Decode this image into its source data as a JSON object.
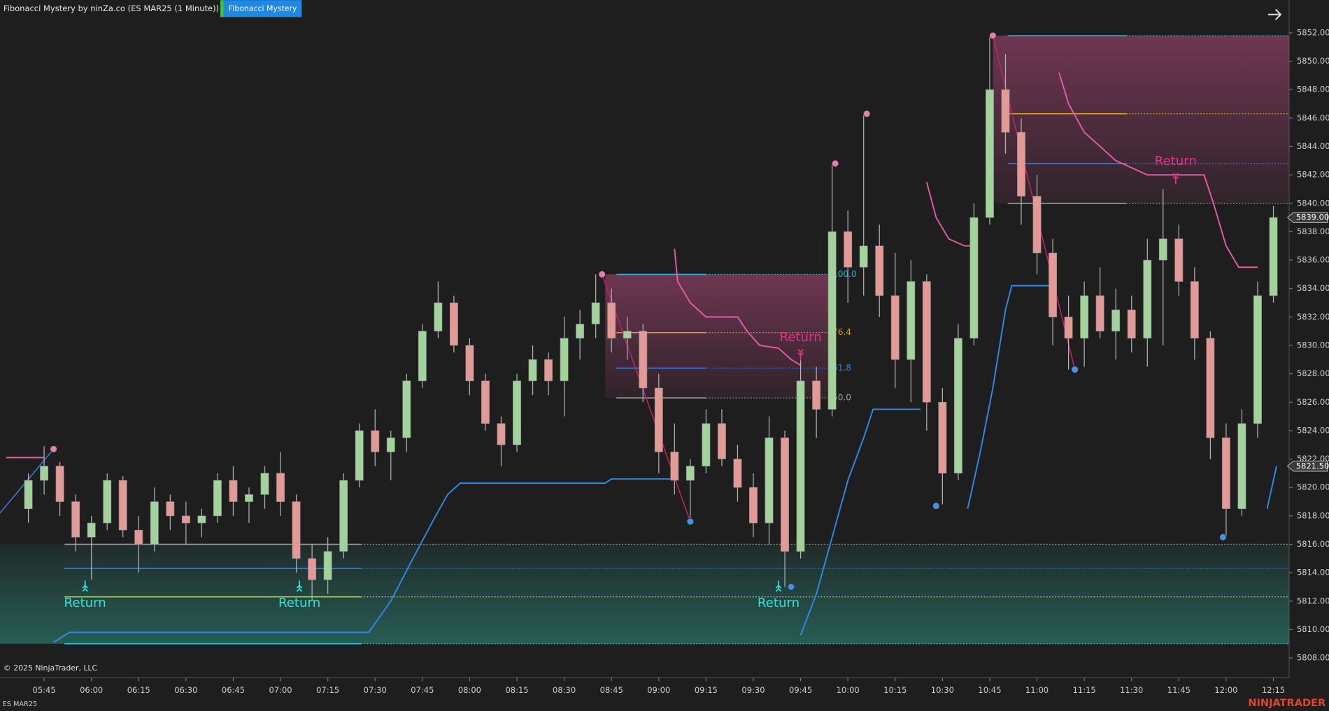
{
  "header": {
    "title": "Fibonacci Mystery by ninZa.co (ES MAR25 (1 Minute))",
    "button": "Fibonacci Mystery"
  },
  "chart_data": {
    "type": "candlestick",
    "x": [
      "05:40",
      "05:45",
      "05:50",
      "05:55",
      "06:00",
      "06:05",
      "06:10",
      "06:15",
      "06:20",
      "06:25",
      "06:30",
      "06:35",
      "06:40",
      "06:45",
      "06:50",
      "06:55",
      "07:00",
      "07:05",
      "07:10",
      "07:15",
      "07:20",
      "07:25",
      "07:30",
      "07:35",
      "07:40",
      "07:45",
      "07:50",
      "07:55",
      "08:00",
      "08:05",
      "08:10",
      "08:15",
      "08:20",
      "08:25",
      "08:30",
      "08:35",
      "08:40",
      "08:45",
      "08:50",
      "08:55",
      "09:00",
      "09:05",
      "09:10",
      "09:15",
      "09:20",
      "09:25",
      "09:30",
      "09:35",
      "09:40",
      "09:45",
      "09:50",
      "09:55",
      "10:00",
      "10:05",
      "10:10",
      "10:15",
      "10:20",
      "10:25",
      "10:30",
      "10:35",
      "10:40",
      "10:45",
      "10:50",
      "10:55",
      "11:00",
      "11:05",
      "11:10",
      "11:15",
      "11:20",
      "11:25",
      "11:30",
      "11:35",
      "11:40",
      "11:45",
      "11:50",
      "11:55",
      "12:00",
      "12:05",
      "12:10",
      "12:15"
    ],
    "open": [
      5818.5,
      5820.5,
      5821.5,
      5819.0,
      5816.5,
      5817.5,
      5820.5,
      5817.0,
      5816.0,
      5819.0,
      5818.0,
      5817.5,
      5818.0,
      5820.5,
      5819.0,
      5819.5,
      5821.0,
      5819.0,
      5815.0,
      5813.5,
      5815.5,
      5820.5,
      5824.0,
      5822.5,
      5823.5,
      5827.5,
      5831.0,
      5833.0,
      5830.0,
      5827.5,
      5824.5,
      5823.0,
      5827.5,
      5829.0,
      5827.5,
      5830.5,
      5831.5,
      5833.0,
      5830.5,
      5831.0,
      5827.0,
      5822.5,
      5820.5,
      5821.5,
      5824.5,
      5822.0,
      5820.0,
      5817.5,
      5823.5,
      5815.5,
      5827.5,
      5825.5,
      5838.0,
      5835.5,
      5837.0,
      5833.5,
      5829.0,
      5834.5,
      5826.0,
      5821.0,
      5830.5,
      5839.0,
      5848.0,
      5845.0,
      5840.5,
      5836.5,
      5832.0,
      5830.5,
      5833.5,
      5831.0,
      5832.5,
      5830.5,
      5836.0,
      5837.5,
      5834.5,
      5830.5,
      5823.5,
      5818.5,
      5824.5,
      5833.5
    ],
    "high": [
      5821.0,
      5822.9,
      5821.8,
      5819.5,
      5818.0,
      5821.0,
      5820.8,
      5818.0,
      5820.0,
      5819.5,
      5819.0,
      5818.5,
      5821.0,
      5821.5,
      5820.0,
      5821.5,
      5822.5,
      5819.5,
      5816.0,
      5816.5,
      5821.0,
      5824.5,
      5825.5,
      5824.0,
      5828.0,
      5831.5,
      5834.5,
      5833.5,
      5830.5,
      5828.0,
      5825.0,
      5828.0,
      5830.0,
      5829.5,
      5832.0,
      5832.5,
      5835.0,
      5834.0,
      5832.0,
      5831.5,
      5828.0,
      5824.5,
      5822.0,
      5825.5,
      5825.5,
      5823.0,
      5821.0,
      5825.0,
      5824.0,
      5829.0,
      5828.5,
      5842.7,
      5839.5,
      5846.3,
      5838.5,
      5836.5,
      5836.0,
      5835.0,
      5827.0,
      5831.5,
      5840.0,
      5851.8,
      5850.5,
      5846.0,
      5842.0,
      5837.5,
      5833.5,
      5834.5,
      5835.5,
      5834.0,
      5833.5,
      5837.5,
      5841.0,
      5838.5,
      5835.5,
      5831.0,
      5824.5,
      5825.5,
      5834.5,
      5839.8
    ],
    "low": [
      5817.5,
      5819.5,
      5818.0,
      5815.5,
      5813.5,
      5817.0,
      5816.5,
      5814.0,
      5815.5,
      5817.0,
      5816.0,
      5816.5,
      5817.5,
      5818.0,
      5817.5,
      5818.5,
      5818.0,
      5814.0,
      5812.0,
      5812.5,
      5815.0,
      5820.0,
      5821.5,
      5820.5,
      5822.5,
      5827.0,
      5830.5,
      5829.5,
      5826.5,
      5824.0,
      5821.5,
      5822.5,
      5826.5,
      5826.5,
      5825.0,
      5829.0,
      5830.5,
      5829.5,
      5829.0,
      5826.0,
      5821.0,
      5819.5,
      5817.6,
      5821.0,
      5821.5,
      5819.0,
      5816.5,
      5816.0,
      5813.0,
      5815.0,
      5823.5,
      5825.0,
      5833.0,
      5833.5,
      5832.0,
      5827.0,
      5826.0,
      5824.0,
      5818.8,
      5820.5,
      5830.0,
      5838.5,
      5843.5,
      5838.5,
      5835.0,
      5830.0,
      5828.3,
      5828.5,
      5830.5,
      5829.0,
      5829.5,
      5828.5,
      5830.0,
      5833.5,
      5829.0,
      5822.0,
      5816.5,
      5818.0,
      5823.5,
      5833.0
    ],
    "close": [
      5820.5,
      5821.5,
      5819.0,
      5816.5,
      5817.5,
      5820.5,
      5817.0,
      5816.0,
      5819.0,
      5818.0,
      5817.5,
      5818.0,
      5820.5,
      5819.0,
      5819.5,
      5821.0,
      5819.0,
      5815.0,
      5813.5,
      5815.5,
      5820.5,
      5824.0,
      5822.5,
      5823.5,
      5827.5,
      5831.0,
      5833.0,
      5830.0,
      5827.5,
      5824.5,
      5823.0,
      5827.5,
      5829.0,
      5827.5,
      5830.5,
      5831.5,
      5833.0,
      5830.5,
      5831.0,
      5827.0,
      5822.5,
      5820.5,
      5821.5,
      5824.5,
      5822.0,
      5820.0,
      5817.5,
      5823.5,
      5815.5,
      5827.5,
      5825.5,
      5838.0,
      5835.5,
      5837.0,
      5833.5,
      5829.0,
      5834.5,
      5826.0,
      5821.0,
      5830.5,
      5839.0,
      5848.0,
      5845.0,
      5840.5,
      5836.5,
      5832.0,
      5830.5,
      5833.5,
      5831.0,
      5832.5,
      5830.5,
      5836.0,
      5837.5,
      5834.5,
      5830.5,
      5823.5,
      5818.5,
      5824.5,
      5833.5,
      5839.0
    ],
    "up_color": "#a3d39c",
    "down_color": "#e39a97",
    "xlim": [
      "05:31",
      "12:20"
    ],
    "xticks": [
      "05:45",
      "06:00",
      "06:15",
      "06:30",
      "06:45",
      "07:00",
      "07:15",
      "07:30",
      "07:45",
      "08:00",
      "08:15",
      "08:30",
      "08:45",
      "09:00",
      "09:15",
      "09:30",
      "09:45",
      "10:00",
      "10:15",
      "10:30",
      "10:45",
      "11:00",
      "11:15",
      "11:30",
      "11:45",
      "12:00",
      "12:15"
    ],
    "ylim": [
      5806.6,
      5854.3
    ],
    "yticks": [
      {
        "value": 5808,
        "label": "5808.00"
      },
      {
        "value": 5810,
        "label": "5810.00"
      },
      {
        "value": 5812,
        "label": "5812.00"
      },
      {
        "value": 5814,
        "label": "5814.00"
      },
      {
        "value": 5816,
        "label": "5816.00"
      },
      {
        "value": 5818,
        "label": "5818.00"
      },
      {
        "value": 5820,
        "label": "5820.00"
      },
      {
        "value": 5822,
        "label": "5822.00"
      },
      {
        "value": 5824,
        "label": "5824.00"
      },
      {
        "value": 5826,
        "label": "5826.00"
      },
      {
        "value": 5828,
        "label": "5828.00"
      },
      {
        "value": 5830,
        "label": "5830.00"
      },
      {
        "value": 5832,
        "label": "5832.00"
      },
      {
        "value": 5834,
        "label": "5834.00"
      },
      {
        "value": 5836,
        "label": "5836.00"
      },
      {
        "value": 5838,
        "label": "5838.00"
      },
      {
        "value": 5840,
        "label": "5840.00"
      },
      {
        "value": 5842,
        "label": "5842.00"
      },
      {
        "value": 5844,
        "label": "5844.00"
      },
      {
        "value": 5846,
        "label": "5846.00"
      },
      {
        "value": 5848,
        "label": "5848.00"
      },
      {
        "value": 5850,
        "label": "5850.00"
      },
      {
        "value": 5852,
        "label": "5852.00"
      }
    ],
    "zones": [
      {
        "x": [
          "05:31",
          "12:20"
        ],
        "direction": "up",
        "fill": "#2f8f80",
        "levels": [
          {
            "price": 5816.0,
            "color": "#9e9e9e"
          },
          {
            "price": 5814.3,
            "color": "#2f80ed"
          },
          {
            "price": 5812.3,
            "color": "#d6c530"
          },
          {
            "price": 5809.0,
            "color": "#26c6da"
          }
        ]
      },
      {
        "x": [
          "08:43",
          "09:54"
        ],
        "direction": "down",
        "fill": "#b04a7c",
        "levels": [
          {
            "price": 5835.0,
            "ratio": "100.0",
            "color": "#26b5d6"
          },
          {
            "price": 5830.9,
            "ratio": "76.4",
            "color": "#e0a020"
          },
          {
            "price": 5828.4,
            "ratio": "61.8",
            "color": "#2f80ed"
          },
          {
            "price": 5826.3,
            "ratio": "50.0",
            "color": "#9e9e9e"
          }
        ]
      },
      {
        "x": [
          "10:46",
          "12:20"
        ],
        "direction": "down",
        "fill": "#b04a7c",
        "levels": [
          {
            "price": 5851.8,
            "color": "#26b5d6"
          },
          {
            "price": 5846.3,
            "color": "#e0a020"
          },
          {
            "price": 5842.8,
            "color": "#2f80ed"
          },
          {
            "price": 5840.0,
            "color": "#9e9e9e"
          }
        ]
      }
    ],
    "trail_lines": [
      {
        "color": "#2f8ae6",
        "x": [
          "05:48",
          "05:53",
          "07:28",
          "07:35",
          "07:42",
          "07:48",
          "07:53",
          "07:57",
          "08:43",
          "08:45",
          "09:05",
          null,
          "09:45",
          "09:50",
          "09:55",
          "10:00",
          "10:05",
          "10:08",
          "10:23",
          null,
          "10:38",
          "10:42",
          "10:46",
          "10:50",
          "10:52",
          "11:05",
          null,
          "12:13",
          "12:16"
        ],
        "values": [
          5809.1,
          5809.8,
          5809.8,
          5812.0,
          5815.0,
          5817.5,
          5819.5,
          5820.3,
          5820.3,
          5820.6,
          5820.6,
          null,
          5809.6,
          5812.5,
          5816.5,
          5820.5,
          5823.5,
          5825.5,
          5825.5,
          null,
          5818.5,
          5822.5,
          5827.0,
          5832.5,
          5834.2,
          5834.2,
          null,
          5818.5,
          5821.5
        ]
      },
      {
        "color": "#e45aa8",
        "x": [
          "05:33",
          "05:45",
          null,
          "09:05",
          "09:06",
          "09:10",
          "09:15",
          "09:25",
          "09:28",
          "09:32",
          "09:38",
          "09:42",
          "09:45",
          null,
          "10:25",
          "10:28",
          "10:32",
          "10:37",
          "10:40",
          null,
          "11:07",
          "11:10",
          "11:15",
          "11:20",
          "11:25",
          "11:30",
          "11:35",
          "11:53",
          "11:56",
          "12:00",
          "12:04",
          "12:10"
        ],
        "values": [
          5822.1,
          5822.1,
          null,
          5836.8,
          5834.5,
          5833.0,
          5832.0,
          5832.0,
          5831.0,
          5830.0,
          5829.8,
          5829.0,
          5828.6,
          null,
          5841.5,
          5839.0,
          5837.5,
          5837.0,
          5837.0,
          null,
          5849.2,
          5847.0,
          5845.0,
          5844.0,
          5843.0,
          5842.5,
          5842.0,
          5842.0,
          5840.0,
          5837.0,
          5835.5,
          5835.5
        ]
      }
    ],
    "swing_lines": [
      {
        "color": "#3a7bd5",
        "points": [
          [
            "05:31",
            5818.2
          ],
          [
            "05:48",
            5822.7
          ]
        ]
      },
      {
        "color": "#c0206a",
        "points": [
          [
            "08:42",
            5835.0
          ],
          [
            "09:10",
            5817.6
          ]
        ]
      },
      {
        "color": "#c0206a",
        "points": [
          [
            "10:46",
            5851.8
          ],
          [
            "11:12",
            5828.3
          ]
        ]
      }
    ],
    "pivots": [
      {
        "x": "05:48",
        "price": 5822.7,
        "color": "#e47fb4"
      },
      {
        "x": "08:42",
        "price": 5835.0,
        "color": "#e47fb4"
      },
      {
        "x": "09:10",
        "price": 5817.6,
        "color": "#4a90e2"
      },
      {
        "x": "09:42",
        "price": 5813.0,
        "color": "#4a90e2"
      },
      {
        "x": "09:56",
        "price": 5842.8,
        "color": "#e47fb4"
      },
      {
        "x": "10:06",
        "price": 5846.3,
        "color": "#e47fb4"
      },
      {
        "x": "10:28",
        "price": 5818.7,
        "color": "#4a90e2"
      },
      {
        "x": "10:46",
        "price": 5851.8,
        "color": "#e47fb4"
      },
      {
        "x": "11:12",
        "price": 5828.3,
        "color": "#4a90e2"
      },
      {
        "x": "11:59",
        "price": 5816.5,
        "color": "#4a90e2"
      }
    ],
    "signals": [
      {
        "label": "Return",
        "x": "05:58",
        "price": 5813.1,
        "direction": "up",
        "color": "#2fe3e0"
      },
      {
        "label": "Return",
        "x": "07:06",
        "price": 5813.1,
        "direction": "up",
        "color": "#2fe3e0"
      },
      {
        "label": "Return",
        "x": "09:38",
        "price": 5813.1,
        "direction": "up",
        "color": "#2fe3e0"
      },
      {
        "label": "Return",
        "x": "09:45",
        "price": 5829.3,
        "direction": "down",
        "color": "#e8308a"
      },
      {
        "label": "Return",
        "x": "11:44",
        "price": 5841.7,
        "direction": "down",
        "color": "#e8308a"
      }
    ],
    "price_markers": [
      {
        "value": 5839.0,
        "label": "5839.00",
        "color": "#3a3a3a"
      },
      {
        "value": 5821.5,
        "label": "5821.50",
        "color": "#3a3a3a"
      }
    ]
  },
  "footer": {
    "copyright": "© 2025 NinjaTrader, LLC",
    "instrument": "ES MAR25",
    "brand": "NINJATRADER"
  }
}
